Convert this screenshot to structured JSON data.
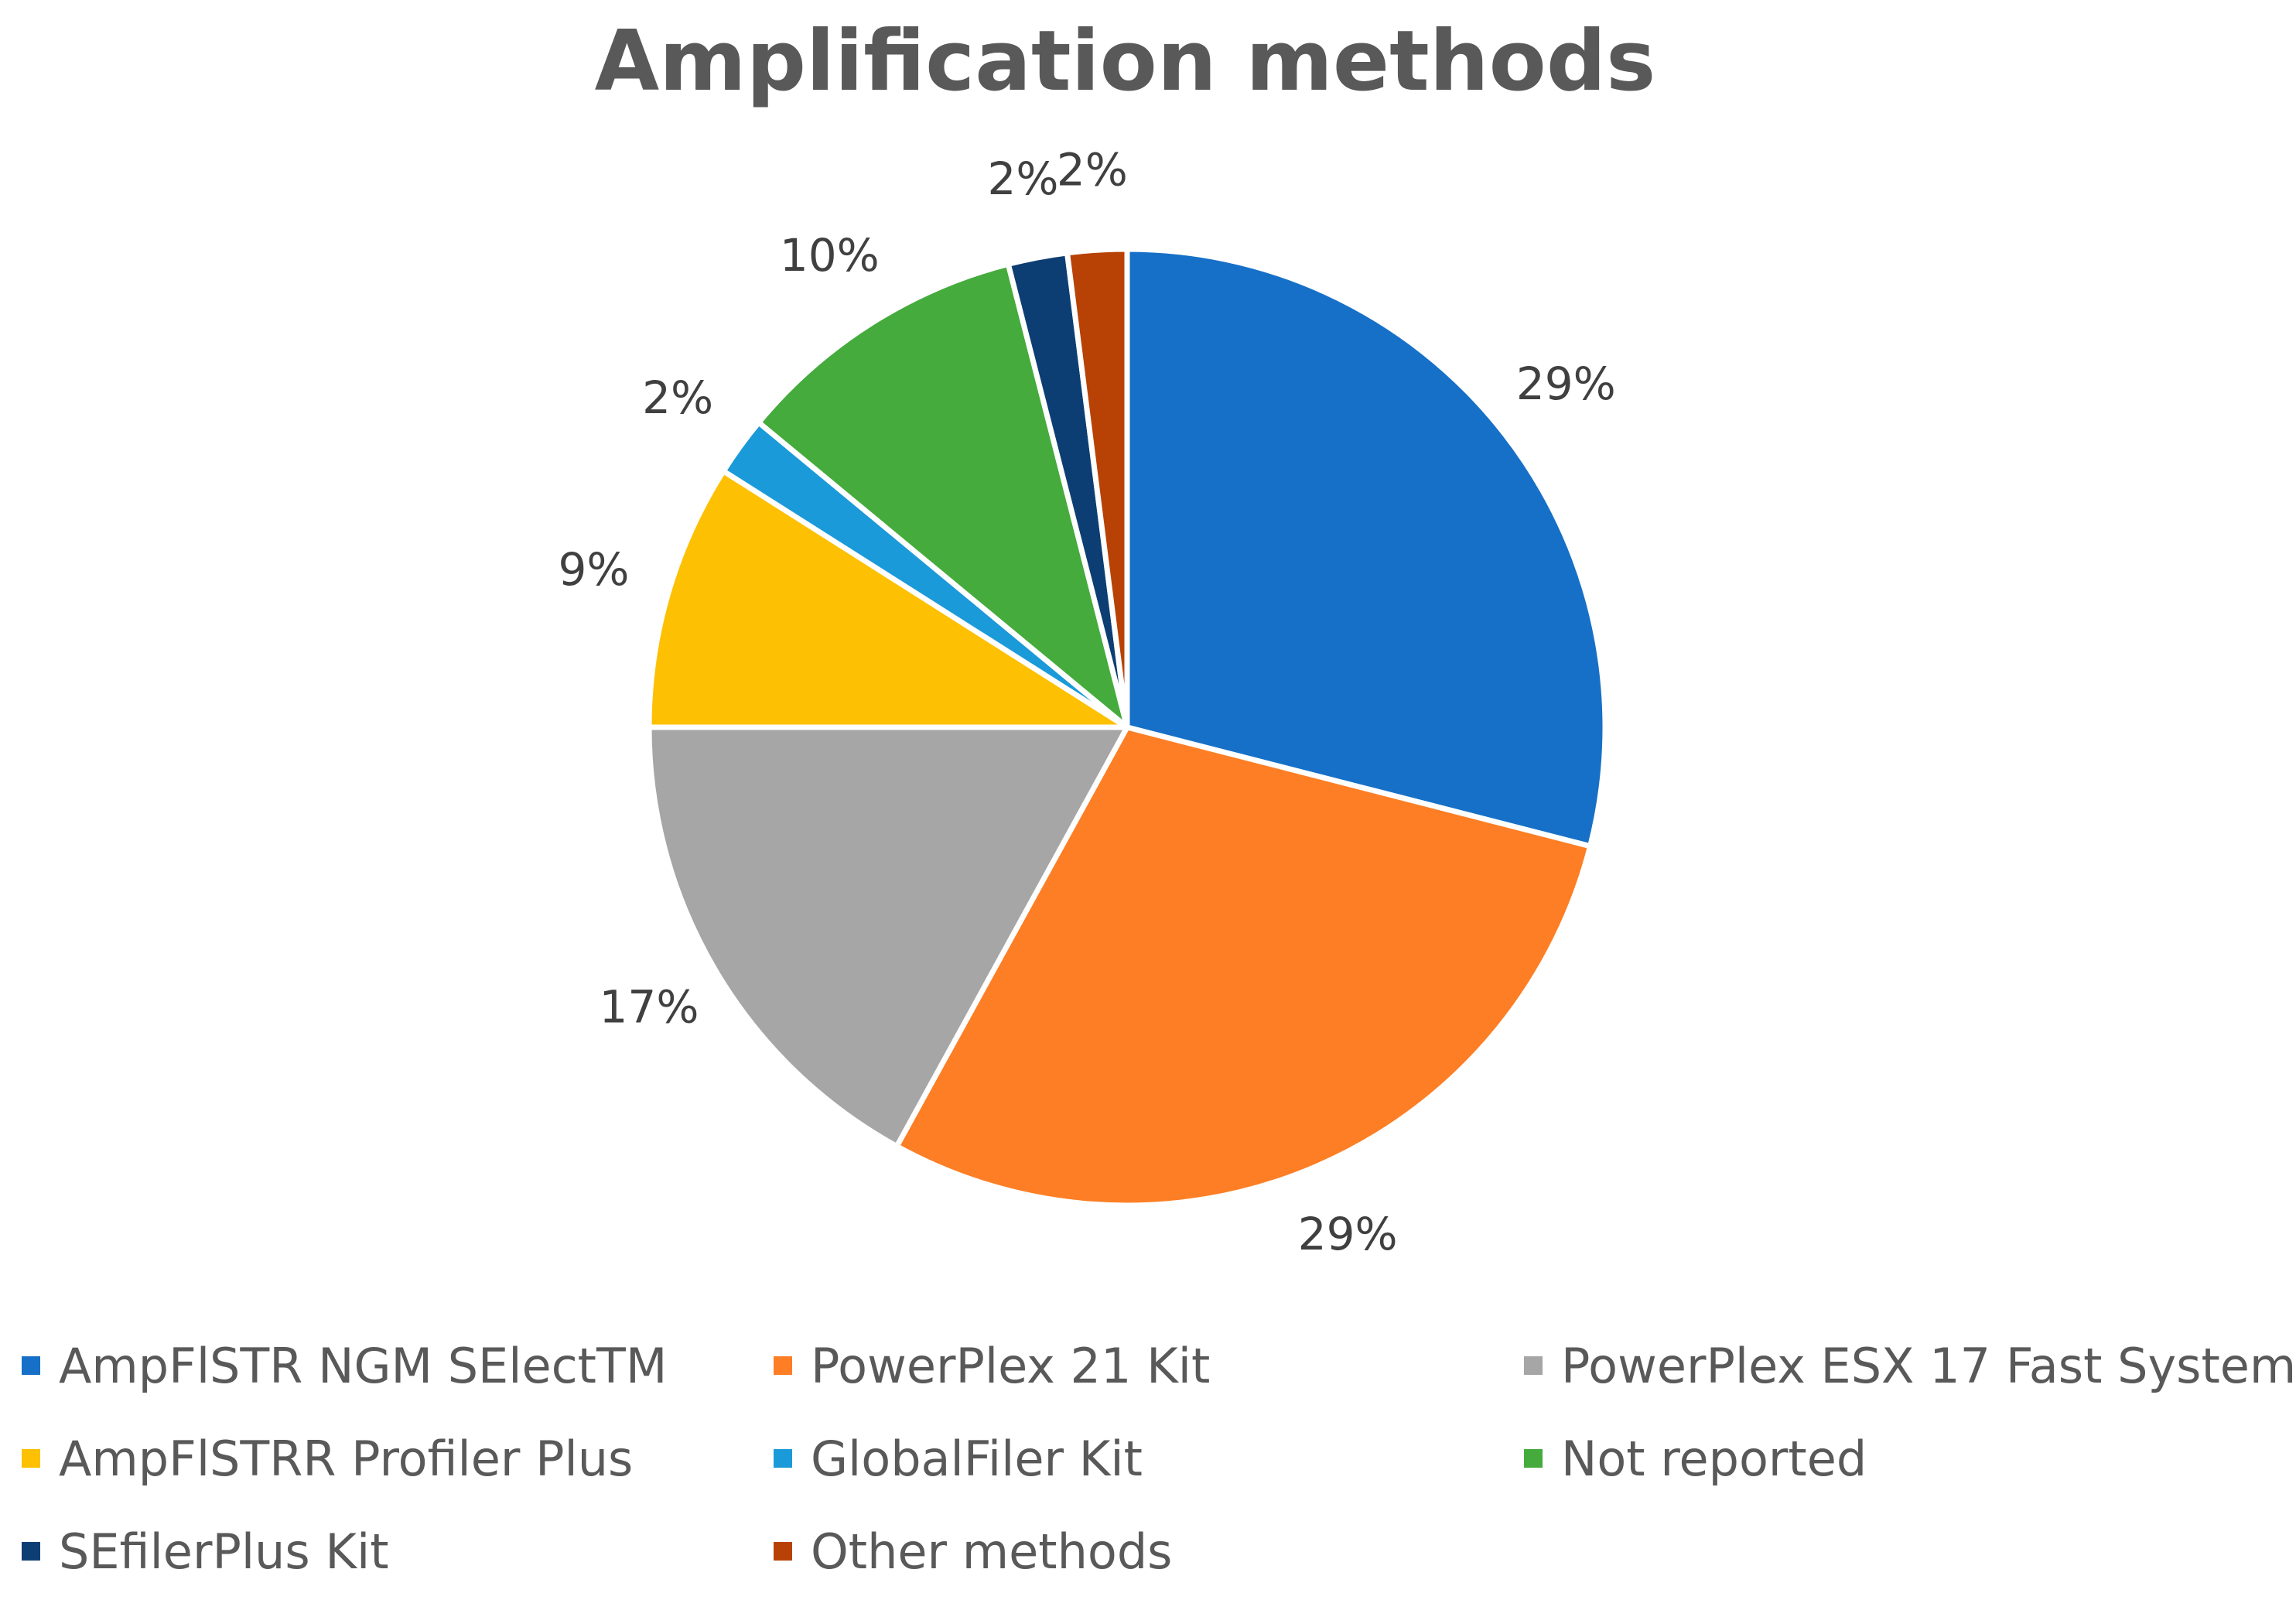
{
  "chart_data": {
    "type": "pie",
    "title": "Amplification methods",
    "slices": [
      {
        "label": "AmpFlSTR NGM SElectTM",
        "value": 29,
        "display": "29%",
        "color": "#1670c7"
      },
      {
        "label": "PowerPlex 21 Kit",
        "value": 29,
        "display": "29%",
        "color": "#fd7e24"
      },
      {
        "label": "PowerPlex ESX 17 Fast System",
        "value": 17,
        "display": "17%",
        "color": "#a6a6a6"
      },
      {
        "label": "AmpFlSTRR Profiler Plus",
        "value": 9,
        "display": "9%",
        "color": "#fdc002"
      },
      {
        "label": "GlobalFiler Kit",
        "value": 2,
        "display": "2%",
        "color": "#1b9ad9"
      },
      {
        "label": "Not reported",
        "value": 10,
        "display": "10%",
        "color": "#44ab3c"
      },
      {
        "label": "SEfilerPlus Kit",
        "value": 2,
        "display": "2%",
        "color": "#0d3e73"
      },
      {
        "label": "Other methods",
        "value": 2,
        "display": "2%",
        "color": "#b84205"
      }
    ],
    "start": "12 o'clock",
    "direction": "clockwise",
    "legend_position": "bottom"
  }
}
